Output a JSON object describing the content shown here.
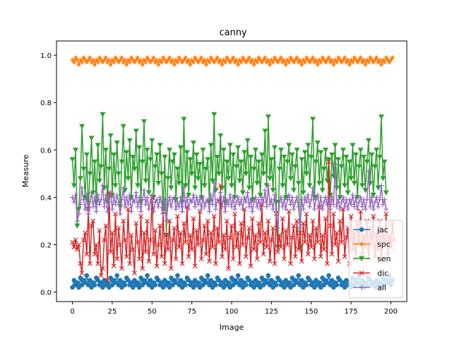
{
  "chart_data": {
    "type": "line",
    "title": "canny",
    "xlabel": "Image",
    "ylabel": "Measure",
    "xlim": [
      -10,
      210
    ],
    "ylim": [
      -0.04,
      1.06
    ],
    "xticks": [
      0,
      25,
      50,
      75,
      100,
      125,
      150,
      175,
      200
    ],
    "yticks": [
      0.0,
      0.2,
      0.4,
      0.6,
      0.8,
      1.0
    ],
    "xtick_labels": [
      "0",
      "25",
      "50",
      "75",
      "100",
      "125",
      "150",
      "175",
      "200"
    ],
    "ytick_labels": [
      "0.0",
      "0.2",
      "0.4",
      "0.6",
      "0.8",
      "1.0"
    ],
    "legend_position": "lower-right",
    "grid": false,
    "x_start": 0,
    "x_step": 1,
    "series": [
      {
        "name": "jac",
        "color": "#1f77b4",
        "marker": "circle",
        "values": [
          0.02,
          0.05,
          0.03,
          0.04,
          0.02,
          0.06,
          0.03,
          0.05,
          0.04,
          0.07,
          0.03,
          0.05,
          0.02,
          0.04,
          0.03,
          0.06,
          0.05,
          0.03,
          0.04,
          0.02,
          0.05,
          0.03,
          0.04,
          0.02,
          0.06,
          0.03,
          0.05,
          0.04,
          0.07,
          0.03,
          0.05,
          0.02,
          0.04,
          0.03,
          0.06,
          0.05,
          0.03,
          0.04,
          0.02,
          0.05,
          0.03,
          0.04,
          0.02,
          0.06,
          0.03,
          0.05,
          0.04,
          0.07,
          0.03,
          0.05,
          0.02,
          0.04,
          0.03,
          0.06,
          0.05,
          0.03,
          0.04,
          0.02,
          0.05,
          0.03,
          0.04,
          0.02,
          0.06,
          0.03,
          0.05,
          0.04,
          0.07,
          0.03,
          0.05,
          0.02,
          0.04,
          0.03,
          0.06,
          0.05,
          0.03,
          0.04,
          0.02,
          0.05,
          0.03,
          0.04,
          0.02,
          0.06,
          0.03,
          0.05,
          0.04,
          0.07,
          0.03,
          0.05,
          0.02,
          0.04,
          0.03,
          0.06,
          0.05,
          0.03,
          0.04,
          0.02,
          0.05,
          0.03,
          0.04,
          0.02,
          0.06,
          0.03,
          0.05,
          0.04,
          0.07,
          0.03,
          0.05,
          0.02,
          0.04,
          0.03,
          0.06,
          0.05,
          0.03,
          0.04,
          0.02,
          0.05,
          0.03,
          0.04,
          0.02,
          0.06,
          0.03,
          0.05,
          0.04,
          0.07,
          0.03,
          0.05,
          0.02,
          0.04,
          0.03,
          0.06,
          0.05,
          0.03,
          0.04,
          0.02,
          0.05,
          0.03,
          0.04,
          0.02,
          0.06,
          0.03,
          0.05,
          0.04,
          0.07,
          0.03,
          0.05,
          0.02,
          0.04,
          0.03,
          0.06,
          0.05,
          0.03,
          0.04,
          0.02,
          0.05,
          0.03,
          0.04,
          0.02,
          0.06,
          0.03,
          0.05,
          0.04,
          0.07,
          0.03,
          0.05,
          0.02,
          0.04,
          0.03,
          0.06,
          0.05,
          0.03,
          0.04,
          0.02,
          0.05,
          0.03,
          0.04,
          0.02,
          0.06,
          0.03,
          0.05,
          0.04,
          0.07,
          0.03,
          0.05,
          0.02,
          0.04,
          0.03,
          0.06,
          0.05,
          0.03,
          0.04,
          0.02,
          0.05,
          0.03,
          0.04,
          0.02,
          0.06,
          0.03,
          0.05,
          0.04,
          0.07,
          0.03,
          0.05
        ]
      },
      {
        "name": "spc",
        "color": "#ff7f0e",
        "marker": "star",
        "values": [
          0.98,
          0.97,
          0.99,
          0.98,
          0.96,
          0.98,
          0.97,
          0.99,
          0.98,
          0.97,
          0.98,
          0.99,
          0.97,
          0.98,
          0.96,
          0.98,
          0.97,
          0.99,
          0.98,
          0.97,
          0.98,
          0.99,
          0.97,
          0.98,
          0.96,
          0.98,
          0.97,
          0.99,
          0.98,
          0.97,
          0.98,
          0.99,
          0.97,
          0.98,
          0.96,
          0.98,
          0.97,
          0.99,
          0.98,
          0.97,
          0.98,
          0.99,
          0.97,
          0.98,
          0.96,
          0.98,
          0.97,
          0.99,
          0.98,
          0.97,
          0.98,
          0.99,
          0.97,
          0.98,
          0.96,
          0.98,
          0.97,
          0.99,
          0.98,
          0.97,
          0.98,
          0.99,
          0.97,
          0.98,
          0.96,
          0.98,
          0.97,
          0.99,
          0.98,
          0.97,
          0.98,
          0.99,
          0.97,
          0.98,
          0.96,
          0.98,
          0.97,
          0.99,
          0.98,
          0.97,
          0.98,
          0.99,
          0.97,
          0.98,
          0.96,
          0.98,
          0.97,
          0.99,
          0.98,
          0.97,
          0.98,
          0.99,
          0.97,
          0.98,
          0.96,
          0.98,
          0.97,
          0.99,
          0.98,
          0.97,
          0.98,
          0.99,
          0.97,
          0.98,
          0.96,
          0.98,
          0.97,
          0.99,
          0.98,
          0.97,
          0.98,
          0.99,
          0.97,
          0.98,
          0.96,
          0.98,
          0.97,
          0.99,
          0.98,
          0.97,
          0.98,
          0.99,
          0.97,
          0.98,
          0.96,
          0.98,
          0.97,
          0.99,
          0.98,
          0.97,
          0.98,
          0.99,
          0.97,
          0.98,
          0.96,
          0.98,
          0.97,
          0.99,
          0.98,
          0.97,
          0.98,
          0.99,
          0.97,
          0.98,
          0.96,
          0.98,
          0.97,
          0.99,
          0.98,
          0.97,
          0.98,
          0.99,
          0.97,
          0.98,
          0.96,
          0.98,
          0.97,
          0.99,
          0.98,
          0.97,
          0.98,
          0.99,
          0.97,
          0.98,
          0.96,
          0.98,
          0.97,
          0.99,
          0.98,
          0.97,
          0.98,
          0.99,
          0.97,
          0.98,
          0.96,
          0.98,
          0.97,
          0.99,
          0.98,
          0.97,
          0.98,
          0.99,
          0.97,
          0.98,
          0.96,
          0.98,
          0.97,
          0.99,
          0.98,
          0.97,
          0.98,
          0.99,
          0.97,
          0.98,
          0.96,
          0.98,
          0.97,
          0.99,
          0.98,
          0.97,
          0.98,
          0.99
        ]
      },
      {
        "name": "sen",
        "color": "#2ca02c",
        "marker": "triangle-down",
        "values": [
          0.56,
          0.45,
          0.6,
          0.28,
          0.35,
          0.48,
          0.7,
          0.52,
          0.4,
          0.58,
          0.35,
          0.5,
          0.65,
          0.42,
          0.55,
          0.38,
          0.62,
          0.47,
          0.53,
          0.75,
          0.44,
          0.6,
          0.38,
          0.52,
          0.66,
          0.41,
          0.58,
          0.45,
          0.63,
          0.5,
          0.36,
          0.55,
          0.7,
          0.43,
          0.59,
          0.48,
          0.64,
          0.4,
          0.57,
          0.52,
          0.68,
          0.45,
          0.61,
          0.38,
          0.55,
          0.72,
          0.47,
          0.6,
          0.42,
          0.56,
          0.64,
          0.4,
          0.53,
          0.58,
          0.46,
          0.62,
          0.5,
          0.35,
          0.57,
          0.24,
          0.48,
          0.6,
          0.44,
          0.55,
          0.58,
          0.39,
          0.52,
          0.46,
          0.61,
          0.38,
          0.73,
          0.45,
          0.59,
          0.41,
          0.56,
          0.5,
          0.63,
          0.44,
          0.58,
          0.48,
          0.54,
          0.4,
          0.6,
          0.45,
          0.52,
          0.56,
          0.38,
          0.62,
          0.47,
          0.75,
          0.43,
          0.57,
          0.5,
          0.66,
          0.44,
          0.6,
          0.38,
          0.55,
          0.48,
          0.62,
          0.45,
          0.58,
          0.4,
          0.53,
          0.61,
          0.47,
          0.55,
          0.42,
          0.59,
          0.5,
          0.64,
          0.44,
          0.57,
          0.39,
          0.52,
          0.6,
          0.46,
          0.55,
          0.41,
          0.58,
          0.5,
          0.68,
          0.45,
          0.74,
          0.48,
          0.56,
          0.43,
          0.61,
          0.38,
          0.19,
          0.52,
          0.6,
          0.45,
          0.57,
          0.4,
          0.55,
          0.62,
          0.48,
          0.58,
          0.43,
          0.53,
          0.6,
          0.46,
          0.19,
          0.56,
          0.42,
          0.59,
          0.5,
          0.62,
          0.45,
          0.57,
          0.73,
          0.4,
          0.55,
          0.63,
          0.46,
          0.59,
          0.43,
          0.52,
          0.6,
          0.47,
          0.56,
          0.41,
          0.58,
          0.49,
          0.62,
          0.44,
          0.56,
          0.4,
          0.53,
          0.6,
          0.45,
          0.57,
          0.42,
          0.55,
          0.48,
          0.62,
          0.46,
          0.58,
          0.4,
          0.53,
          0.6,
          0.45,
          0.57,
          0.43,
          0.55,
          0.64,
          0.46,
          0.58,
          0.41,
          0.53,
          0.6,
          0.44,
          0.57,
          0.74,
          0.48,
          0.55,
          0.42
        ]
      },
      {
        "name": "dic",
        "color": "#d62728",
        "marker": "x",
        "values": [
          0.21,
          0.19,
          0.22,
          0.18,
          0.2,
          0.12,
          0.08,
          0.22,
          0.25,
          0.16,
          0.35,
          0.12,
          0.28,
          0.3,
          0.16,
          0.2,
          0.12,
          0.26,
          0.07,
          0.1,
          0.22,
          0.28,
          0.05,
          0.42,
          0.17,
          0.25,
          0.11,
          0.33,
          0.14,
          0.27,
          0.2,
          0.1,
          0.3,
          0.22,
          0.15,
          0.35,
          0.12,
          0.24,
          0.18,
          0.08,
          0.29,
          0.21,
          0.14,
          0.32,
          0.1,
          0.25,
          0.17,
          0.3,
          0.13,
          0.22,
          0.4,
          0.16,
          0.26,
          0.11,
          0.2,
          0.28,
          0.15,
          0.34,
          0.12,
          0.24,
          0.18,
          0.3,
          0.1,
          0.22,
          0.27,
          0.14,
          0.32,
          0.19,
          0.25,
          0.12,
          0.29,
          0.21,
          0.36,
          0.15,
          0.24,
          0.18,
          0.31,
          0.11,
          0.26,
          0.2,
          0.34,
          0.14,
          0.22,
          0.28,
          0.16,
          0.3,
          0.13,
          0.25,
          0.19,
          0.32,
          0.12,
          0.27,
          0.21,
          0.45,
          0.15,
          0.24,
          0.18,
          0.3,
          0.1,
          0.23,
          0.28,
          0.14,
          0.33,
          0.19,
          0.25,
          0.12,
          0.29,
          0.2,
          0.35,
          0.15,
          0.23,
          0.27,
          0.11,
          0.31,
          0.18,
          0.24,
          0.14,
          0.29,
          0.21,
          0.37,
          0.16,
          0.25,
          0.19,
          0.3,
          0.13,
          0.22,
          0.27,
          0.12,
          0.33,
          0.17,
          0.24,
          0.19,
          0.31,
          0.14,
          0.26,
          0.2,
          0.34,
          0.12,
          0.23,
          0.28,
          0.15,
          0.3,
          0.18,
          0.25,
          0.13,
          0.29,
          0.21,
          0.33,
          0.16,
          0.24,
          0.19,
          0.3,
          0.14,
          0.27,
          0.21,
          0.36,
          0.15,
          0.24,
          0.18,
          0.31,
          0.12,
          0.55,
          0.28,
          0.16,
          0.33,
          0.2,
          0.25,
          0.13,
          0.3,
          0.21,
          0.35,
          0.15,
          0.23,
          0.27,
          0.12,
          0.32,
          0.18,
          0.25,
          0.14,
          0.29,
          0.21,
          0.34,
          0.16,
          0.24,
          0.19,
          0.3,
          0.14,
          0.27,
          0.2,
          0.32,
          0.15,
          0.24,
          0.18,
          0.3,
          0.13,
          0.26,
          0.21,
          0.33,
          0.16,
          0.24,
          0.19,
          0.29,
          0.22
        ]
      },
      {
        "name": "all",
        "color": "#9467bd",
        "marker": "plus",
        "values": [
          0.4,
          0.38,
          0.41,
          0.3,
          0.33,
          0.37,
          0.44,
          0.39,
          0.35,
          0.41,
          0.33,
          0.38,
          0.42,
          0.36,
          0.4,
          0.34,
          0.41,
          0.37,
          0.39,
          0.45,
          0.36,
          0.41,
          0.34,
          0.38,
          0.42,
          0.35,
          0.4,
          0.37,
          0.41,
          0.38,
          0.33,
          0.39,
          0.44,
          0.36,
          0.4,
          0.37,
          0.41,
          0.34,
          0.39,
          0.38,
          0.42,
          0.36,
          0.4,
          0.34,
          0.39,
          0.43,
          0.37,
          0.4,
          0.35,
          0.38,
          0.41,
          0.34,
          0.38,
          0.39,
          0.36,
          0.4,
          0.38,
          0.33,
          0.39,
          0.3,
          0.37,
          0.4,
          0.36,
          0.39,
          0.4,
          0.35,
          0.38,
          0.36,
          0.4,
          0.34,
          0.44,
          0.36,
          0.4,
          0.35,
          0.39,
          0.38,
          0.41,
          0.36,
          0.4,
          0.37,
          0.39,
          0.35,
          0.4,
          0.36,
          0.38,
          0.39,
          0.34,
          0.41,
          0.37,
          0.46,
          0.35,
          0.39,
          0.38,
          0.42,
          0.36,
          0.4,
          0.34,
          0.39,
          0.37,
          0.41,
          0.36,
          0.4,
          0.35,
          0.38,
          0.4,
          0.37,
          0.39,
          0.35,
          0.4,
          0.38,
          0.42,
          0.36,
          0.39,
          0.34,
          0.38,
          0.4,
          0.36,
          0.39,
          0.35,
          0.4,
          0.38,
          0.43,
          0.36,
          0.45,
          0.37,
          0.39,
          0.35,
          0.41,
          0.34,
          0.27,
          0.38,
          0.4,
          0.36,
          0.39,
          0.35,
          0.39,
          0.41,
          0.37,
          0.4,
          0.35,
          0.38,
          0.4,
          0.36,
          0.27,
          0.39,
          0.35,
          0.4,
          0.38,
          0.41,
          0.36,
          0.39,
          0.44,
          0.35,
          0.39,
          0.41,
          0.36,
          0.4,
          0.35,
          0.38,
          0.4,
          0.37,
          0.39,
          0.35,
          0.4,
          0.37,
          0.54,
          0.36,
          0.39,
          0.35,
          0.38,
          0.4,
          0.36,
          0.39,
          0.35,
          0.39,
          0.37,
          0.41,
          0.36,
          0.4,
          0.35,
          0.38,
          0.4,
          0.36,
          0.39,
          0.35,
          0.39,
          0.51,
          0.36,
          0.4,
          0.35,
          0.38,
          0.4,
          0.36,
          0.39,
          0.45,
          0.37,
          0.39,
          0.35
        ]
      }
    ]
  }
}
